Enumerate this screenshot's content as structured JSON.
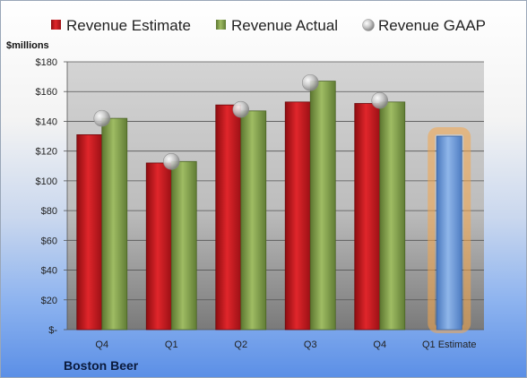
{
  "chart_data": {
    "type": "bar",
    "title": "",
    "company": "Boston Beer",
    "yunit": "$millions",
    "categories": [
      "Q4",
      "Q1",
      "Q2",
      "Q3",
      "Q4",
      "Q1 Estimate"
    ],
    "ylim": [
      0,
      180
    ],
    "yticks": [
      "$-",
      "$20",
      "$40",
      "$60",
      "$80",
      "$100",
      "$120",
      "$140",
      "$160",
      "$180"
    ],
    "grid": true,
    "legend_position": "top",
    "series": [
      {
        "name": "Revenue Estimate",
        "color": "#c8161d",
        "values": [
          131,
          112,
          151,
          153,
          152,
          null
        ]
      },
      {
        "name": "Revenue Actual",
        "color": "#82a04b",
        "values": [
          142,
          113,
          147,
          167,
          153,
          null
        ]
      },
      {
        "name": "Revenue GAAP",
        "color": "#b8b8b8",
        "values": [
          142,
          113,
          148,
          166,
          154,
          null
        ]
      }
    ],
    "estimate": {
      "category": "Q1 Estimate",
      "value": 130,
      "color": "#6c9ad8",
      "glow": "#f4a64a"
    }
  }
}
